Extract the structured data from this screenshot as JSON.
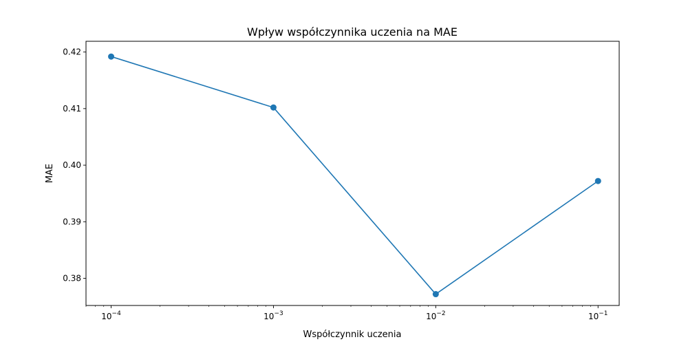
{
  "chart_data": {
    "type": "line",
    "title": "Wpływ współczynnika uczenia na MAE",
    "xlabel": "Współczynnik uczenia",
    "ylabel": "MAE",
    "xscale": "log",
    "xlim": [
      7e-05,
      0.135
    ],
    "ylim": [
      0.3752,
      0.4219
    ],
    "xticks": [
      {
        "value": 0.0001,
        "base": "10",
        "exp": "−4"
      },
      {
        "value": 0.001,
        "base": "10",
        "exp": "−3"
      },
      {
        "value": 0.01,
        "base": "10",
        "exp": "−2"
      },
      {
        "value": 0.1,
        "base": "10",
        "exp": "−1"
      }
    ],
    "yticks": [
      "0.38",
      "0.39",
      "0.40",
      "0.41",
      "0.42"
    ],
    "grid": false,
    "series": [
      {
        "color": "#1f77b4",
        "marker": "circle",
        "x": [
          0.0001,
          0.001,
          0.01,
          0.1
        ],
        "y": [
          0.4192,
          0.4102,
          0.3772,
          0.3972
        ]
      }
    ]
  }
}
